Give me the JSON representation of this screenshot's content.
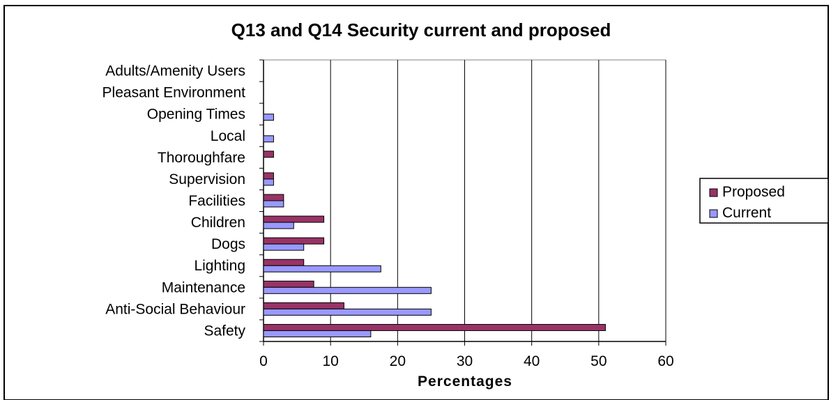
{
  "chart_data": {
    "type": "bar",
    "orientation": "horizontal",
    "title": "Q13 and Q14 Security current and proposed",
    "xlabel": "Percentages",
    "ylabel": "",
    "xlim": [
      0,
      60
    ],
    "x_ticks": [
      0,
      10,
      20,
      30,
      40,
      50,
      60
    ],
    "grid": "vertical major gridlines on",
    "legend_position": "right",
    "categories": [
      "Adults/Amenity Users",
      "Pleasant Environment",
      "Opening Times",
      "Local",
      "Thoroughfare",
      "Supervision",
      "Facilities",
      "Children",
      "Dogs",
      "Lighting",
      "Maintenance",
      "Anti-Social Behaviour",
      "Safety"
    ],
    "series": [
      {
        "name": "Proposed",
        "color": "#993366",
        "values": [
          0,
          0,
          0,
          0,
          1.5,
          1.5,
          3,
          9,
          9,
          6,
          7.5,
          12,
          51
        ]
      },
      {
        "name": "Current",
        "color": "#9999ff",
        "values": [
          0,
          0,
          1.5,
          1.5,
          0,
          1.5,
          3,
          4.5,
          6,
          17.5,
          25,
          25,
          16
        ]
      }
    ]
  }
}
